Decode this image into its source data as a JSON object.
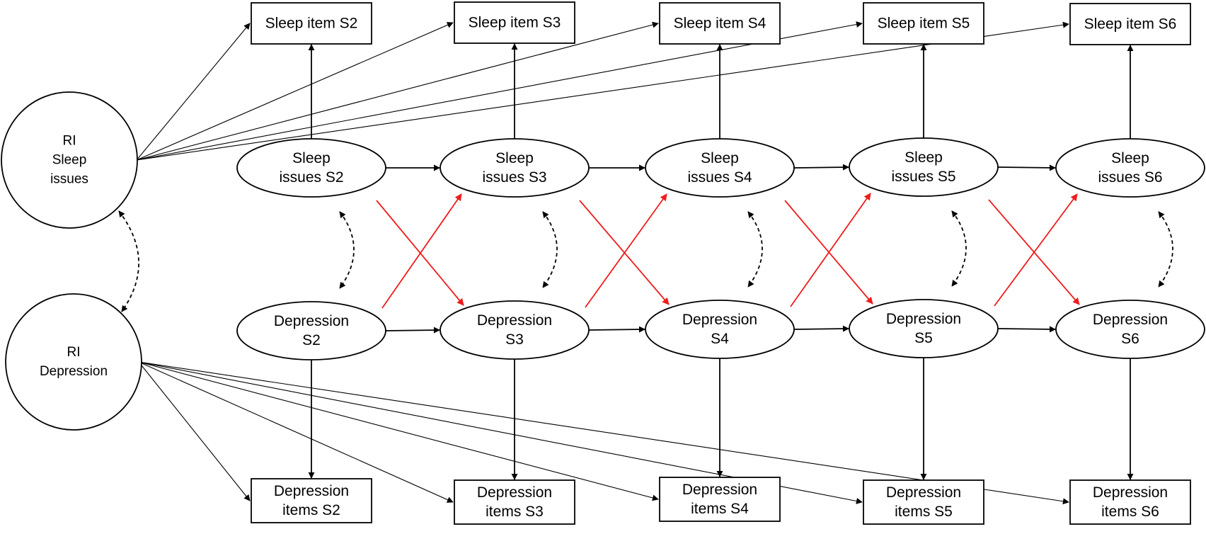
{
  "random_intercepts": {
    "sleep": [
      "RI",
      "Sleep",
      "issues"
    ],
    "depression": [
      "RI",
      "Depression"
    ]
  },
  "sleep_items": [
    "Sleep item S2",
    "Sleep item S3",
    "Sleep item S4",
    "Sleep item S5",
    "Sleep item S6"
  ],
  "sleep_latents": [
    [
      "Sleep",
      "issues S2"
    ],
    [
      "Sleep",
      "issues S3"
    ],
    [
      "Sleep",
      "issues S4"
    ],
    [
      "Sleep",
      "issues S5"
    ],
    [
      "Sleep",
      "issues S6"
    ]
  ],
  "depression_latents": [
    [
      "Depression",
      "S2"
    ],
    [
      "Depression",
      "S3"
    ],
    [
      "Depression",
      "S4"
    ],
    [
      "Depression",
      "S5"
    ],
    [
      "Depression",
      "S6"
    ]
  ],
  "depression_items": [
    [
      "Depression",
      "items S2"
    ],
    [
      "Depression",
      "items S3"
    ],
    [
      "Depression",
      "items S4"
    ],
    [
      "Depression",
      "items S5"
    ],
    [
      "Depression",
      "items S6"
    ]
  ],
  "colors": {
    "stroke": "#000000",
    "cross_lagged": "#ee1c1c",
    "background": "#ffffff"
  }
}
